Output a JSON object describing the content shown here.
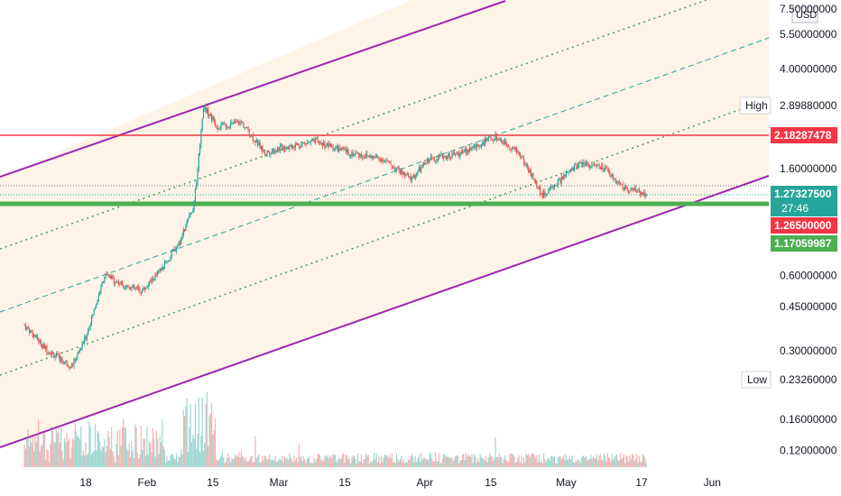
{
  "chart_data": {
    "type": "candlestick",
    "currency": "USD",
    "y_scale": "log",
    "ylim": [
      0.1,
      7.5
    ],
    "price_ticks": [
      "7.50000000",
      "5.50000000",
      "4.00000000",
      "1.60000000",
      "0.60000000",
      "0.45000000",
      "0.30000000",
      "0.16000000",
      "0.12000000"
    ],
    "price_tick_values": [
      7.5,
      5.5,
      4.0,
      1.6,
      0.6,
      0.45,
      0.3,
      0.16,
      0.12
    ],
    "x_ticks": [
      "18",
      "Feb",
      "15",
      "Mar",
      "15",
      "Apr",
      "15",
      "May",
      "17",
      "Jun"
    ],
    "badges": {
      "high": {
        "label": "High",
        "value": "2.89880000",
        "price": 2.8988
      },
      "level_red": {
        "value": "2.18287478",
        "price": 2.18287478,
        "color": "#f23645"
      },
      "current": {
        "value": "1.27327500",
        "price": 1.273275,
        "countdown": "27:46",
        "color": "#26a69a"
      },
      "last": {
        "value": "1.26500000",
        "price": 1.265,
        "color": "#f23645"
      },
      "level_green": {
        "value": "1.17059987",
        "price": 1.17059987,
        "color": "#4caf50"
      },
      "low": {
        "label": "Low",
        "value": "0.23260000",
        "price": 0.2326
      }
    },
    "colors": {
      "up": "#26a69a",
      "down": "#ef5350",
      "channel": "#9c27b0",
      "fill": "#fdf3e7",
      "resistance": "#f23645",
      "support": "#4caf50",
      "midline": "#26a69a",
      "inner": "#43a047"
    },
    "price_path": [
      {
        "date": "Jan-05",
        "price": 0.38
      },
      {
        "date": "Jan-10",
        "price": 0.3
      },
      {
        "date": "Jan-15",
        "price": 0.26
      },
      {
        "date": "Jan-18",
        "price": 0.34
      },
      {
        "date": "Jan-22",
        "price": 0.6
      },
      {
        "date": "Jan-26",
        "price": 0.55
      },
      {
        "date": "Jan-30",
        "price": 0.52
      },
      {
        "date": "Feb-03",
        "price": 0.63
      },
      {
        "date": "Feb-07",
        "price": 0.82
      },
      {
        "date": "Feb-10",
        "price": 1.15
      },
      {
        "date": "Feb-12",
        "price": 2.85
      },
      {
        "date": "Feb-15",
        "price": 2.35
      },
      {
        "date": "Feb-20",
        "price": 2.45
      },
      {
        "date": "Feb-25",
        "price": 1.85
      },
      {
        "date": "Mar-01",
        "price": 1.95
      },
      {
        "date": "Mar-08",
        "price": 2.05
      },
      {
        "date": "Mar-15",
        "price": 1.85
      },
      {
        "date": "Mar-22",
        "price": 1.75
      },
      {
        "date": "Mar-28",
        "price": 1.45
      },
      {
        "date": "Apr-01",
        "price": 1.75
      },
      {
        "date": "Apr-08",
        "price": 1.85
      },
      {
        "date": "Apr-15",
        "price": 2.15
      },
      {
        "date": "Apr-20",
        "price": 1.85
      },
      {
        "date": "Apr-25",
        "price": 1.25
      },
      {
        "date": "Apr-29",
        "price": 1.45
      },
      {
        "date": "May-03",
        "price": 1.7
      },
      {
        "date": "May-08",
        "price": 1.6
      },
      {
        "date": "May-12",
        "price": 1.35
      },
      {
        "date": "May-17",
        "price": 1.27
      }
    ]
  }
}
